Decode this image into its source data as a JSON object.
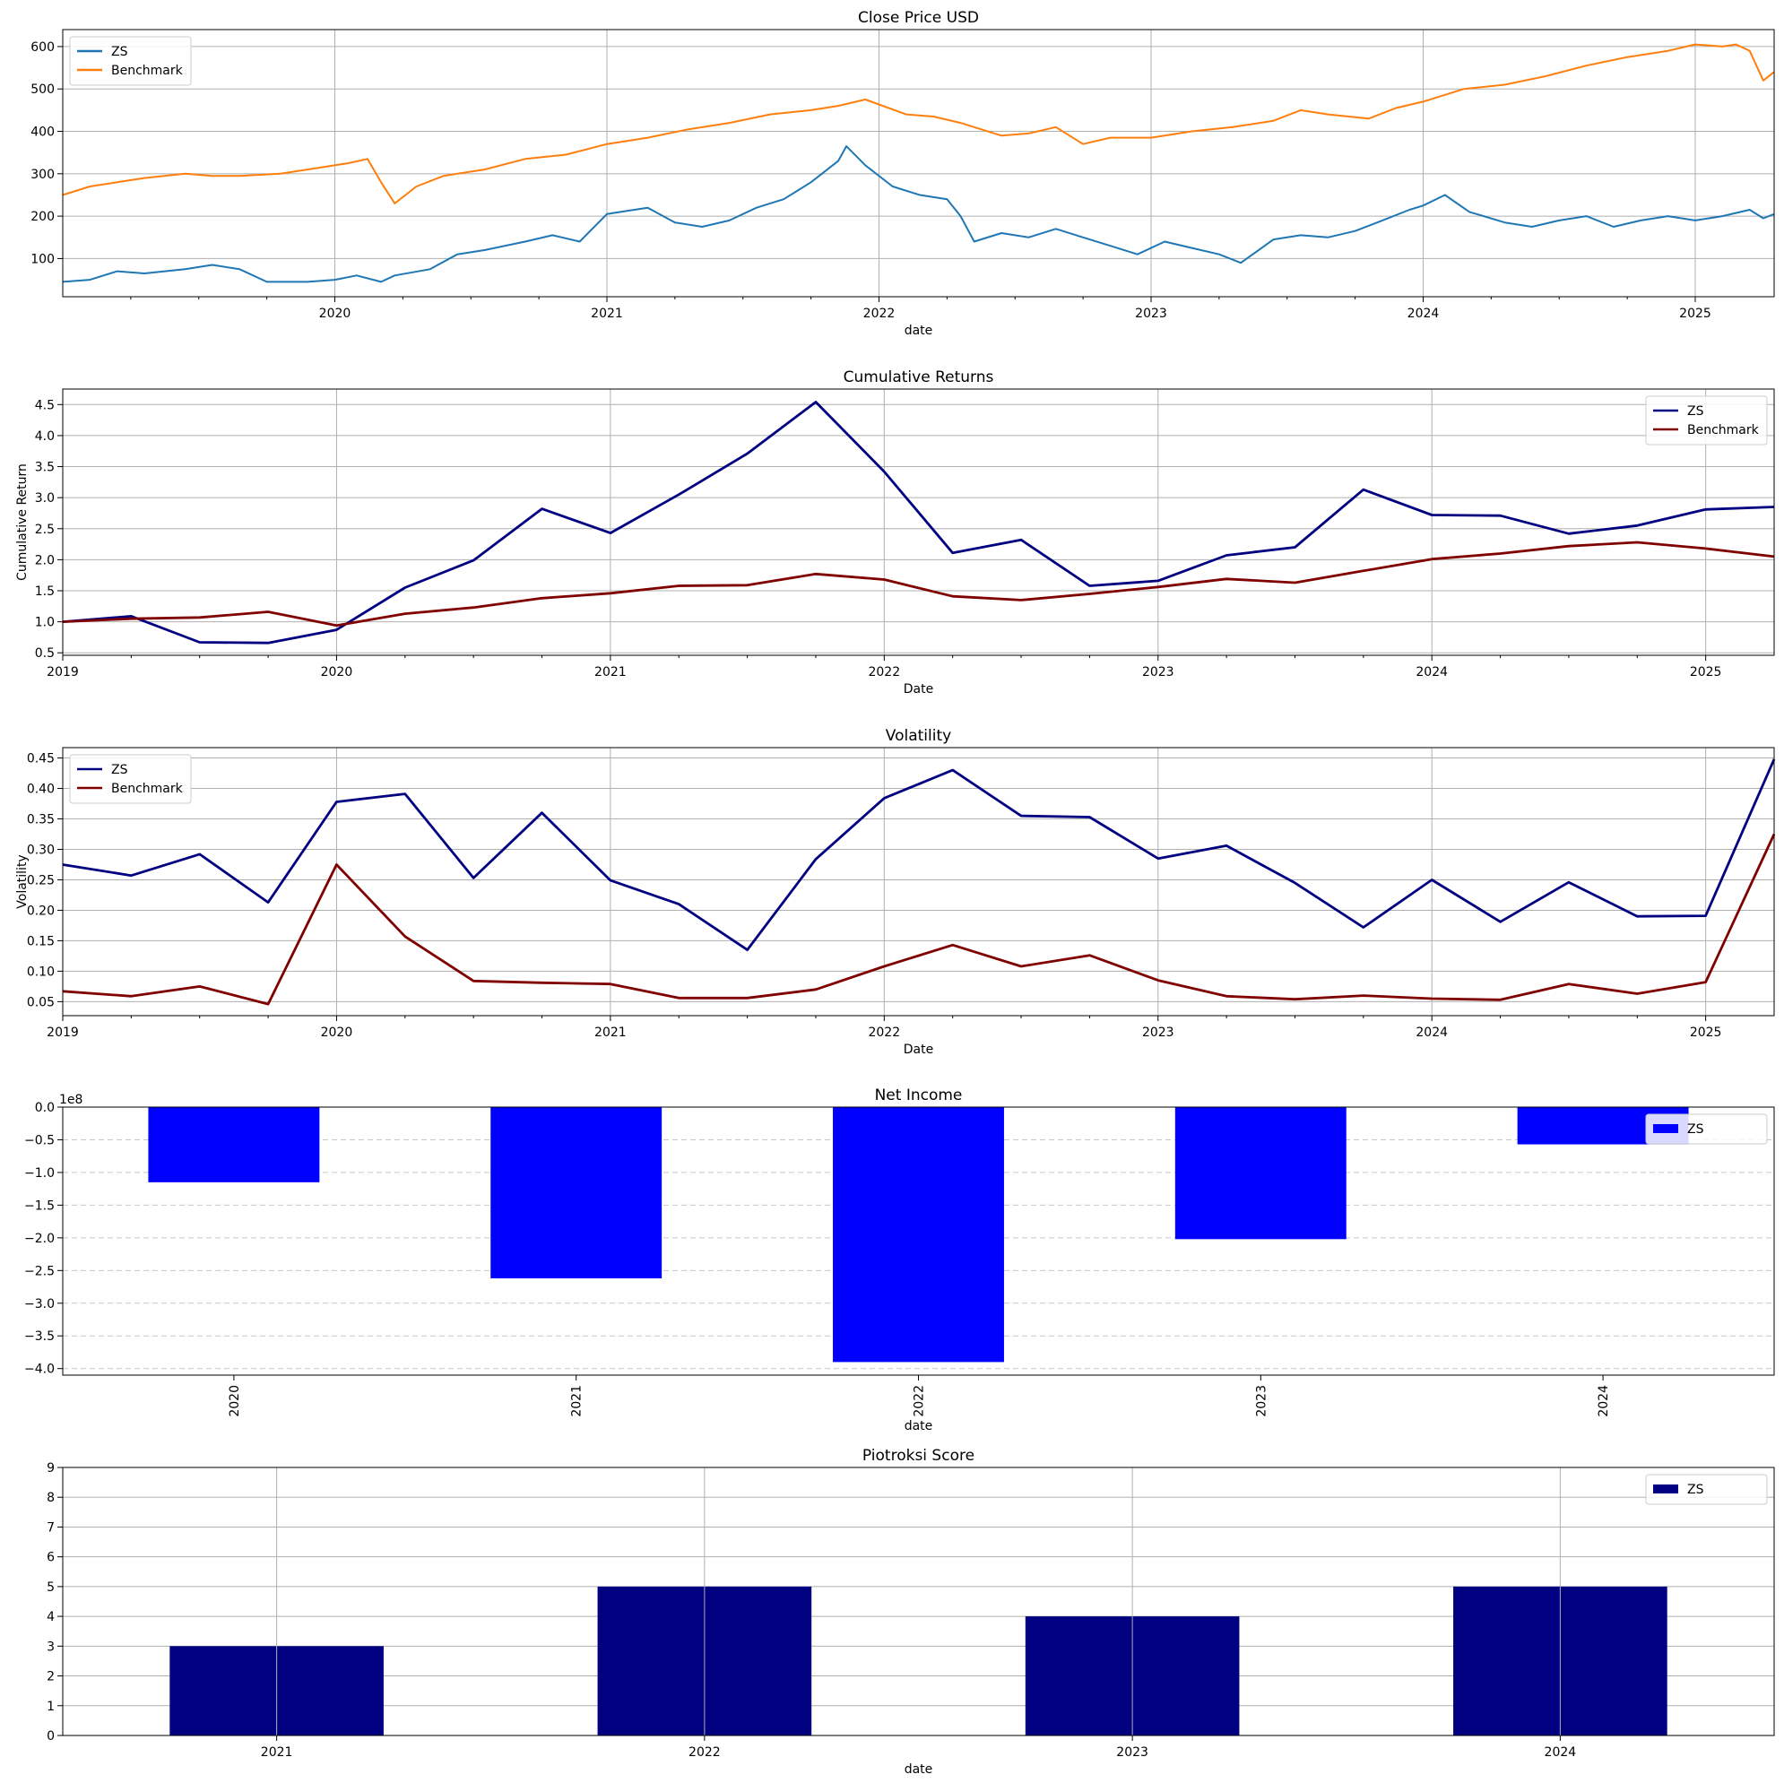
{
  "chart_data": [
    {
      "id": "price",
      "type": "line",
      "title": "Close Price USD",
      "xlabel": "date",
      "ylabel": "",
      "xlim": [
        2019.0,
        2025.29
      ],
      "ylim": [
        10,
        640
      ],
      "xticks": [
        2020,
        2021,
        2022,
        2023,
        2024,
        2025
      ],
      "xtick_labels": [
        "2020",
        "2021",
        "2022",
        "2023",
        "2024",
        "2025"
      ],
      "yticks": [
        100,
        200,
        300,
        400,
        500,
        600
      ],
      "ytick_labels": [
        "100",
        "200",
        "300",
        "400",
        "500",
        "600"
      ],
      "grid": true,
      "legend_position": "upper-left",
      "series": [
        {
          "name": "ZS",
          "color": "#1f77b4",
          "x": [
            2019.0,
            2019.1,
            2019.2,
            2019.3,
            2019.45,
            2019.55,
            2019.65,
            2019.75,
            2019.9,
            2020.0,
            2020.08,
            2020.17,
            2020.22,
            2020.35,
            2020.45,
            2020.55,
            2020.7,
            2020.8,
            2020.9,
            2021.0,
            2021.05,
            2021.15,
            2021.25,
            2021.35,
            2021.45,
            2021.55,
            2021.65,
            2021.75,
            2021.85,
            2021.88,
            2021.95,
            2022.05,
            2022.15,
            2022.25,
            2022.3,
            2022.35,
            2022.45,
            2022.55,
            2022.65,
            2022.75,
            2022.85,
            2022.95,
            2023.05,
            2023.15,
            2023.25,
            2023.33,
            2023.45,
            2023.55,
            2023.65,
            2023.75,
            2023.85,
            2023.95,
            2024.0,
            2024.08,
            2024.17,
            2024.3,
            2024.4,
            2024.5,
            2024.6,
            2024.7,
            2024.8,
            2024.9,
            2025.0,
            2025.1,
            2025.2,
            2025.25,
            2025.29
          ],
          "y": [
            45,
            50,
            70,
            65,
            75,
            85,
            75,
            45,
            45,
            50,
            60,
            45,
            60,
            75,
            110,
            120,
            140,
            155,
            140,
            205,
            210,
            220,
            185,
            175,
            190,
            220,
            240,
            280,
            330,
            365,
            320,
            270,
            250,
            240,
            200,
            140,
            160,
            150,
            170,
            150,
            130,
            110,
            140,
            125,
            110,
            90,
            145,
            155,
            150,
            165,
            190,
            215,
            225,
            250,
            210,
            185,
            175,
            190,
            200,
            175,
            190,
            200,
            190,
            200,
            215,
            195,
            205
          ]
        },
        {
          "name": "Benchmark",
          "color": "#ff7f0e",
          "x": [
            2019.0,
            2019.1,
            2019.2,
            2019.3,
            2019.45,
            2019.55,
            2019.65,
            2019.8,
            2019.95,
            2020.05,
            2020.12,
            2020.17,
            2020.22,
            2020.3,
            2020.4,
            2020.55,
            2020.7,
            2020.85,
            2021.0,
            2021.15,
            2021.3,
            2021.45,
            2021.6,
            2021.75,
            2021.85,
            2021.95,
            2022.1,
            2022.2,
            2022.3,
            2022.45,
            2022.55,
            2022.65,
            2022.75,
            2022.85,
            2023.0,
            2023.15,
            2023.3,
            2023.45,
            2023.55,
            2023.65,
            2023.8,
            2023.9,
            2024.0,
            2024.15,
            2024.3,
            2024.45,
            2024.6,
            2024.75,
            2024.9,
            2025.0,
            2025.1,
            2025.15,
            2025.2,
            2025.25,
            2025.29
          ],
          "y": [
            250,
            270,
            280,
            290,
            300,
            295,
            295,
            300,
            315,
            325,
            335,
            280,
            230,
            270,
            295,
            310,
            335,
            345,
            370,
            385,
            405,
            420,
            440,
            450,
            460,
            475,
            440,
            435,
            420,
            390,
            395,
            410,
            370,
            385,
            385,
            400,
            410,
            425,
            450,
            440,
            430,
            455,
            470,
            500,
            510,
            530,
            555,
            575,
            590,
            605,
            600,
            605,
            590,
            520,
            540
          ]
        }
      ]
    },
    {
      "id": "cumret",
      "type": "line",
      "title": "Cumulative Returns",
      "xlabel": "Date",
      "ylabel": "Cumulative Return",
      "xlim": [
        2019.0,
        2025.25
      ],
      "ylim": [
        0.46,
        4.75
      ],
      "xticks": [
        2019,
        2020,
        2021,
        2022,
        2023,
        2024,
        2025
      ],
      "xtick_labels": [
        "2019",
        "2020",
        "2021",
        "2022",
        "2023",
        "2024",
        "2025"
      ],
      "yticks": [
        0.5,
        1.0,
        1.5,
        2.0,
        2.5,
        3.0,
        3.5,
        4.0,
        4.5
      ],
      "ytick_labels": [
        "0.5",
        "1.0",
        "1.5",
        "2.0",
        "2.5",
        "3.0",
        "3.5",
        "4.0",
        "4.5"
      ],
      "grid": true,
      "legend_position": "upper-right",
      "series": [
        {
          "name": "ZS",
          "color": "#000080",
          "x": [
            2019.0,
            2019.25,
            2019.5,
            2019.75,
            2020.0,
            2020.25,
            2020.5,
            2020.75,
            2021.0,
            2021.25,
            2021.5,
            2021.75,
            2022.0,
            2022.25,
            2022.5,
            2022.75,
            2023.0,
            2023.25,
            2023.5,
            2023.75,
            2024.0,
            2024.25,
            2024.5,
            2024.75,
            2025.0,
            2025.25
          ],
          "y": [
            1.0,
            1.09,
            0.67,
            0.66,
            0.87,
            1.55,
            1.99,
            2.82,
            2.43,
            3.05,
            3.71,
            4.54,
            3.42,
            2.11,
            2.32,
            1.58,
            1.66,
            2.07,
            2.2,
            3.13,
            2.72,
            2.71,
            2.42,
            2.55,
            2.81,
            2.85
          ]
        },
        {
          "name": "Benchmark",
          "color": "#800000",
          "x": [
            2019.0,
            2019.25,
            2019.5,
            2019.75,
            2020.0,
            2020.25,
            2020.5,
            2020.75,
            2021.0,
            2021.25,
            2021.5,
            2021.75,
            2022.0,
            2022.25,
            2022.5,
            2022.75,
            2023.0,
            2023.25,
            2023.5,
            2023.75,
            2024.0,
            2024.25,
            2024.5,
            2024.75,
            2025.0,
            2025.25
          ],
          "y": [
            1.0,
            1.05,
            1.07,
            1.16,
            0.94,
            1.13,
            1.23,
            1.38,
            1.46,
            1.58,
            1.59,
            1.77,
            1.68,
            1.41,
            1.35,
            1.45,
            1.56,
            1.69,
            1.63,
            1.82,
            2.01,
            2.1,
            2.22,
            2.28,
            2.18,
            2.05
          ]
        }
      ]
    },
    {
      "id": "vol",
      "type": "line",
      "title": "Volatility",
      "xlabel": "Date",
      "ylabel": "Volatility",
      "xlim": [
        2019.0,
        2025.25
      ],
      "ylim": [
        0.027,
        0.467
      ],
      "xticks": [
        2019,
        2020,
        2021,
        2022,
        2023,
        2024,
        2025
      ],
      "xtick_labels": [
        "2019",
        "2020",
        "2021",
        "2022",
        "2023",
        "2024",
        "2025"
      ],
      "yticks": [
        0.05,
        0.1,
        0.15,
        0.2,
        0.25,
        0.3,
        0.35,
        0.4,
        0.45
      ],
      "ytick_labels": [
        "0.05",
        "0.10",
        "0.15",
        "0.20",
        "0.25",
        "0.30",
        "0.35",
        "0.40",
        "0.45"
      ],
      "grid": true,
      "legend_position": "upper-left",
      "series": [
        {
          "name": "ZS",
          "color": "#000080",
          "x": [
            2019.0,
            2019.25,
            2019.5,
            2019.75,
            2020.0,
            2020.25,
            2020.5,
            2020.75,
            2021.0,
            2021.25,
            2021.5,
            2021.75,
            2022.0,
            2022.25,
            2022.5,
            2022.75,
            2023.0,
            2023.25,
            2023.5,
            2023.75,
            2024.0,
            2024.25,
            2024.5,
            2024.75,
            2025.0,
            2025.25
          ],
          "y": [
            0.275,
            0.257,
            0.292,
            0.213,
            0.378,
            0.391,
            0.253,
            0.36,
            0.249,
            0.21,
            0.135,
            0.284,
            0.384,
            0.43,
            0.355,
            0.353,
            0.285,
            0.306,
            0.245,
            0.172,
            0.25,
            0.181,
            0.246,
            0.19,
            0.191,
            0.448
          ]
        },
        {
          "name": "Benchmark",
          "color": "#800000",
          "x": [
            2019.0,
            2019.25,
            2019.5,
            2019.75,
            2020.0,
            2020.25,
            2020.5,
            2020.75,
            2021.0,
            2021.25,
            2021.5,
            2021.75,
            2022.0,
            2022.25,
            2022.5,
            2022.75,
            2023.0,
            2023.25,
            2023.5,
            2023.75,
            2024.0,
            2024.25,
            2024.5,
            2024.75,
            2025.0,
            2025.25
          ],
          "y": [
            0.067,
            0.059,
            0.075,
            0.046,
            0.275,
            0.157,
            0.084,
            0.081,
            0.079,
            0.056,
            0.056,
            0.07,
            0.108,
            0.143,
            0.108,
            0.126,
            0.085,
            0.059,
            0.054,
            0.06,
            0.055,
            0.053,
            0.079,
            0.063,
            0.082,
            0.325
          ]
        }
      ]
    },
    {
      "id": "netincome",
      "type": "bar",
      "title": "Net Income",
      "xlabel": "date",
      "ylabel": "",
      "offset_label": "1e8",
      "categories": [
        "2020",
        "2021",
        "2022",
        "2023",
        "2024"
      ],
      "ylim": [
        -4.1,
        0.0
      ],
      "yticks": [
        0.0,
        -0.5,
        -1.0,
        -1.5,
        -2.0,
        -2.5,
        -3.0,
        -3.5,
        -4.0
      ],
      "ytick_labels": [
        "0.0",
        "−0.5",
        "−1.0",
        "−1.5",
        "−2.0",
        "−2.5",
        "−3.0",
        "−3.5",
        "−4.0"
      ],
      "grid": "y-dashed",
      "legend_position": "upper-right",
      "series": [
        {
          "name": "ZS",
          "color": "#0000ff",
          "values": [
            -1.15,
            -2.62,
            -3.9,
            -2.02,
            -0.57
          ]
        }
      ]
    },
    {
      "id": "piotroski",
      "type": "bar",
      "title": "Piotroksi Score",
      "xlabel": "date",
      "ylabel": "",
      "categories": [
        "2021",
        "2022",
        "2023",
        "2024"
      ],
      "ylim": [
        0,
        9
      ],
      "yticks": [
        0,
        1,
        2,
        3,
        4,
        5,
        6,
        7,
        8,
        9
      ],
      "ytick_labels": [
        "0",
        "1",
        "2",
        "3",
        "4",
        "5",
        "6",
        "7",
        "8",
        "9"
      ],
      "grid": true,
      "legend_position": "upper-right",
      "series": [
        {
          "name": "ZS",
          "color": "#000080",
          "values": [
            3,
            5,
            4,
            5
          ]
        }
      ]
    }
  ]
}
